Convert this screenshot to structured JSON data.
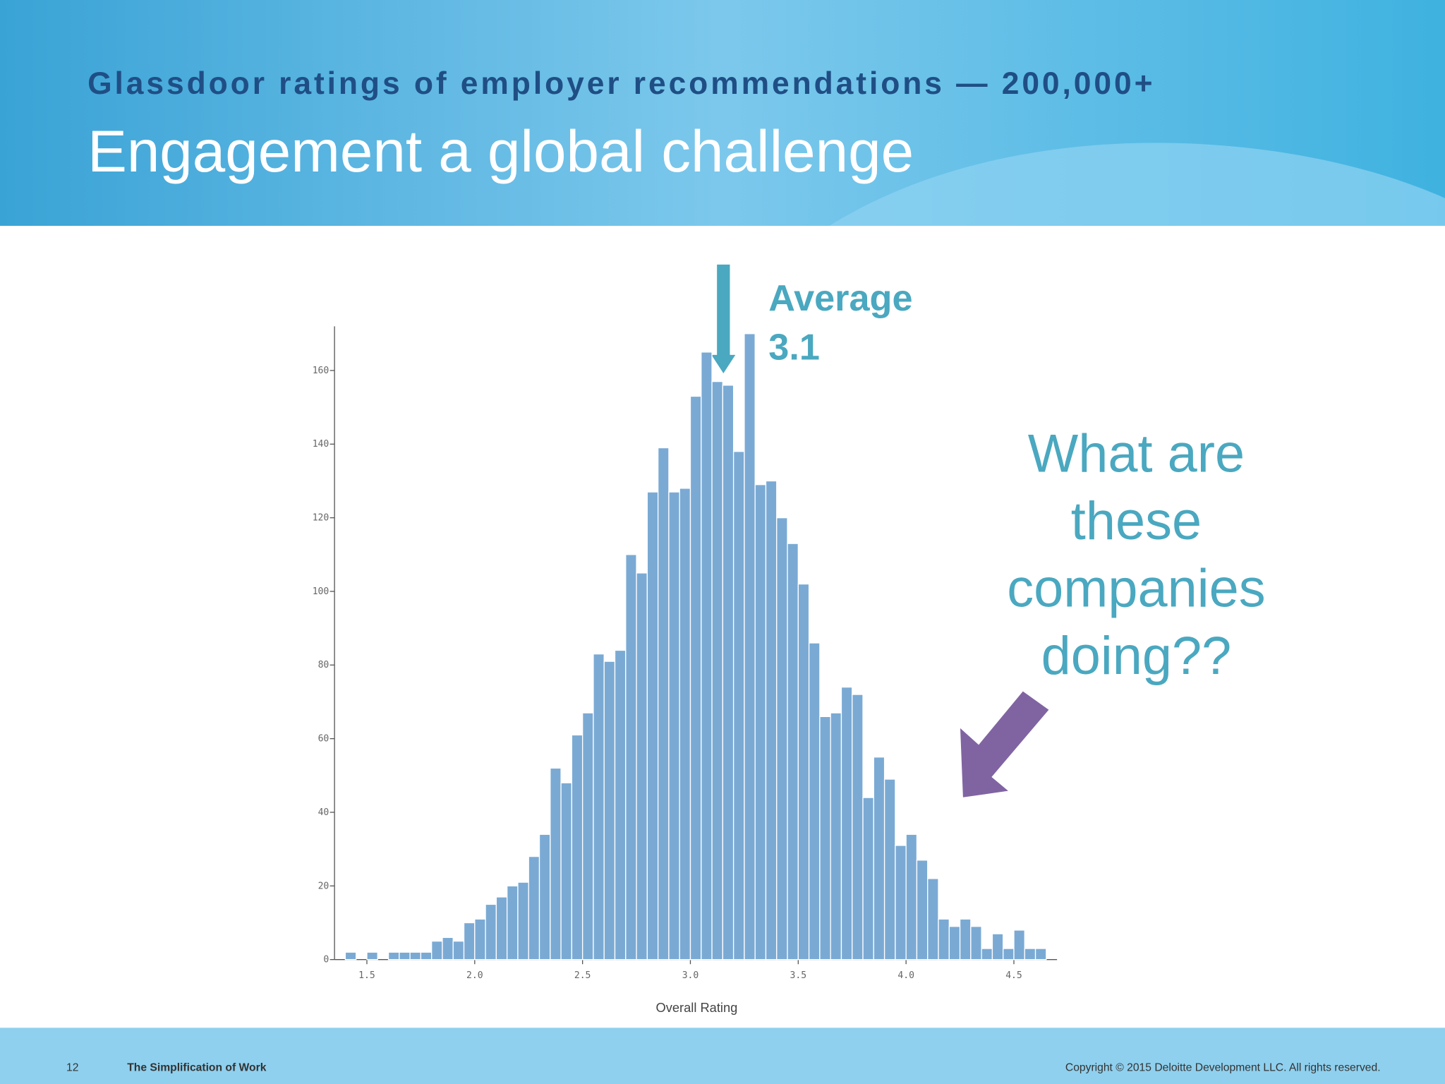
{
  "slide": {
    "subtitle": "Glassdoor ratings of employer recommendations — 200,000+",
    "title": "Engagement a global challenge",
    "footer": {
      "page": "12",
      "deck": "The Simplification of Work",
      "copyright": "Copyright © 2015 Deloitte Development LLC. All rights reserved."
    }
  },
  "chart_data": {
    "type": "histogram",
    "x_label": "Overall Rating",
    "color": "#7aaad4",
    "bins": [
      1.4,
      1.45,
      1.5,
      1.55,
      1.6,
      1.65,
      1.7,
      1.75,
      1.8,
      1.85,
      1.9,
      1.95,
      2.0,
      2.05,
      2.1,
      2.15,
      2.2,
      2.25,
      2.3,
      2.35,
      2.4,
      2.45,
      2.5,
      2.55,
      2.6,
      2.65,
      2.7,
      2.75,
      2.8,
      2.85,
      2.9,
      2.95,
      3.0,
      3.05,
      3.1,
      3.15,
      3.2,
      3.25,
      3.3,
      3.35,
      3.4,
      3.45,
      3.5,
      3.55,
      3.6,
      3.65,
      3.7,
      3.75,
      3.8,
      3.85,
      3.9,
      3.95,
      4.0,
      4.05,
      4.1,
      4.15,
      4.2,
      4.25,
      4.3,
      4.35,
      4.4,
      4.45,
      4.5,
      4.55,
      4.6,
      4.65
    ],
    "values": [
      2,
      0,
      2,
      0,
      2,
      2,
      2,
      2,
      5,
      6,
      5,
      10,
      11,
      15,
      17,
      20,
      21,
      28,
      34,
      52,
      48,
      61,
      67,
      83,
      81,
      84,
      110,
      105,
      127,
      139,
      127,
      128,
      153,
      165,
      157,
      156,
      138,
      170,
      129,
      130,
      120,
      113,
      102,
      86,
      66,
      67,
      74,
      72,
      44,
      55,
      49,
      31,
      34,
      27,
      22,
      11,
      9,
      11,
      9,
      3,
      7,
      3,
      8,
      3,
      3
    ],
    "xlim": [
      1.35,
      4.7
    ],
    "ylim": [
      0,
      172
    ],
    "xticks": [
      1.5,
      {
        "value": 2.0,
        "label": "2.0"
      },
      2.5,
      {
        "value": 3.0,
        "label": "3.0"
      },
      3.5,
      {
        "value": 4.0,
        "label": "4.0"
      },
      4.5
    ],
    "yticks": [
      0,
      20,
      40,
      60,
      80,
      100,
      120,
      140,
      160
    ],
    "annotations": [
      {
        "lines": [
          "Average",
          "3.1"
        ],
        "color": "#4aa8c0"
      },
      {
        "lines": [
          "What are",
          "these",
          "companies",
          "doing??"
        ],
        "color": "#4aa8c0"
      }
    ]
  }
}
